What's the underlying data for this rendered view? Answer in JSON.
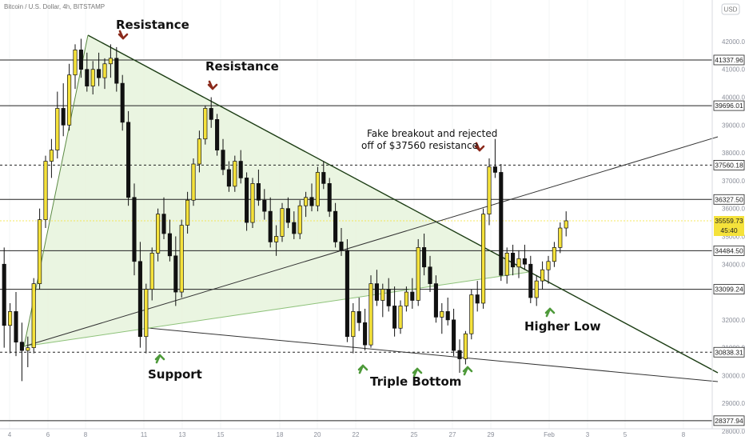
{
  "header": {
    "symbol": "Bitcoin / U.S. Dollar, 4h, BITSTAMP",
    "currency": "USD"
  },
  "chart_data": {
    "type": "candlestick",
    "symbol": "Bitcoin / U.S. Dollar",
    "interval": "4h",
    "exchange": "BITSTAMP",
    "currency": "USD",
    "ylim": [
      28000,
      44000
    ],
    "y_ticks": [
      42000,
      41000,
      40000,
      39000,
      38000,
      37000,
      36000,
      35000,
      34000,
      33000,
      32000,
      31000,
      30000,
      29000,
      28000
    ],
    "x_ticks": [
      "4",
      "6",
      "8",
      "11",
      "13",
      "15",
      "18",
      "20",
      "22",
      "25",
      "27",
      "29",
      "Feb",
      "3",
      "5",
      "8"
    ],
    "levels": [
      {
        "value": 41337.96,
        "label": "41337.96",
        "style": "solid"
      },
      {
        "value": 39696.01,
        "label": "39696.01",
        "style": "solid"
      },
      {
        "value": 37560.18,
        "label": "37560.18",
        "style": "dashed"
      },
      {
        "value": 36327.5,
        "label": "36327.50",
        "style": "solid"
      },
      {
        "value": 34484.5,
        "label": "34484.50",
        "style": "solid"
      },
      {
        "value": 33099.24,
        "label": "33099.24",
        "style": "solid"
      },
      {
        "value": 30838.31,
        "label": "30838.31",
        "style": "dashed"
      },
      {
        "value": 28377.94,
        "label": "28377.94",
        "style": "solid"
      }
    ],
    "current_price": {
      "value": 35559.73,
      "label": "35559.73",
      "countdown": "45:40",
      "color": "#f5e23b"
    },
    "colors": {
      "bull": "#f5e23b",
      "bear": "#111111",
      "wedge": "#e6f3dc",
      "resistance_arrow": "#8b2a1c",
      "support_arrow": "#4e9a3a"
    },
    "annotations": [
      {
        "text": "Resistance",
        "type": "label"
      },
      {
        "text": "Resistance",
        "type": "label"
      },
      {
        "text": "Fake breakout and rejected",
        "type": "label"
      },
      {
        "text": "off of $37560 resistance",
        "type": "label"
      },
      {
        "text": "Support",
        "type": "label"
      },
      {
        "text": "Triple Bottom",
        "type": "label"
      },
      {
        "text": "Higher Low",
        "type": "label"
      }
    ]
  }
}
